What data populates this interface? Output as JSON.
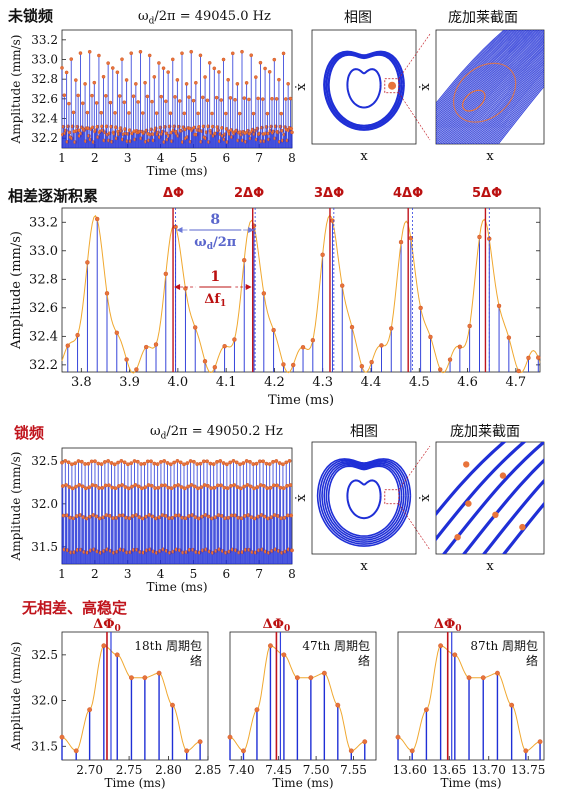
{
  "panels": {
    "p1": {
      "title": "未锁频",
      "freq_label": "ω",
      "freq_sub": "d",
      "freq_rest": "/2π = 49045.0 Hz"
    },
    "p2": {
      "title": "相差逐渐积累"
    },
    "p3": {
      "title": "锁频",
      "freq_label": "ω",
      "freq_sub": "d",
      "freq_rest": "/2π = 49050.2 Hz"
    },
    "p4": {
      "title": "无相差、高稳定"
    }
  },
  "insets": {
    "phase_title": "相图",
    "poincare_title": "庞加莱截面",
    "x_label": "x",
    "y_label": "ẋ"
  },
  "annotations": {
    "delta_labels": [
      "ΔΦ",
      "2ΔΦ",
      "3ΔΦ",
      "4ΔΦ",
      "5ΔΦ"
    ],
    "period_num": "8",
    "period_den": "ω",
    "period_den_sub": "d",
    "period_den_rest": "/2π",
    "beat_num": "1",
    "beat_den": "Δf",
    "beat_den_sub": "1",
    "delta0": "ΔΦ",
    "delta0_sub": "0",
    "envelope_labels": [
      "18th 周期包络",
      "47th 周期包络",
      "87th 周期包络"
    ]
  },
  "colors": {
    "stem": "#1f2fd6",
    "marker": "#e8743b",
    "envelope": "#f0a830",
    "phase_line": "#c0141c",
    "period_line": "#3040e0"
  },
  "chart_data": [
    {
      "type": "scatter",
      "id": "unlocked_time",
      "xlabel": "Time (ms)",
      "ylabel": "Amplitude (mm/s)",
      "xlim": [
        1,
        8
      ],
      "ylim": [
        32.1,
        33.3
      ],
      "xticks": [
        1,
        2,
        3,
        4,
        5,
        6,
        7,
        8
      ],
      "yticks": [
        32.2,
        32.4,
        32.6,
        32.8,
        33.0,
        33.2
      ],
      "description_values": {
        "peak_range": [
          32.7,
          33.1
        ],
        "trough_range": [
          32.25,
          32.35
        ],
        "mid_level": 32.6
      }
    },
    {
      "type": "line",
      "id": "accumulating_phase",
      "xlabel": "Time (ms)",
      "ylabel": "Amplitude (mm/s)",
      "xlim": [
        3.76,
        4.75
      ],
      "ylim": [
        32.15,
        33.3
      ],
      "xticks": [
        3.8,
        3.9,
        4.0,
        4.1,
        4.2,
        4.3,
        4.4,
        4.5,
        4.6,
        4.7
      ],
      "yticks": [
        32.2,
        32.4,
        32.6,
        32.8,
        33.0,
        33.2
      ],
      "peaks": [
        {
          "t": 3.83,
          "v": 33.17
        },
        {
          "t": 3.995,
          "v": 33.12
        },
        {
          "t": 4.155,
          "v": 33.15
        },
        {
          "t": 4.318,
          "v": 33.2
        },
        {
          "t": 4.475,
          "v": 33.14
        },
        {
          "t": 4.637,
          "v": 33.16
        }
      ],
      "phase_lines": [
        3.99,
        4.155,
        4.315,
        4.477,
        4.637
      ],
      "period_lines": [
        3.995,
        4.16,
        4.323,
        4.486,
        4.645
      ]
    },
    {
      "type": "scatter",
      "id": "locked_time",
      "xlabel": "Time (ms)",
      "ylabel": "Amplitude (mm/s)",
      "xlim": [
        1,
        8
      ],
      "ylim": [
        31.3,
        32.65
      ],
      "xticks": [
        1,
        2,
        3,
        4,
        5,
        6,
        7,
        8
      ],
      "yticks": [
        31.5,
        32.0,
        32.5
      ],
      "description_values": {
        "levels": [
          32.48,
          32.2,
          31.85,
          31.45
        ]
      }
    },
    {
      "type": "line",
      "id": "envelope_18",
      "xlabel": "Time (ms)",
      "ylabel": "Amplitude (mm/s)",
      "xlim": [
        2.665,
        2.85
      ],
      "ylim": [
        31.35,
        32.75
      ],
      "xticks": [
        2.7,
        2.75,
        2.8,
        2.85
      ],
      "yticks": [
        31.5,
        32.0,
        32.5
      ],
      "phase_line": 2.722,
      "x": [
        2.665,
        2.683,
        2.7,
        2.718,
        2.735,
        2.753,
        2.77,
        2.788,
        2.805,
        2.823,
        2.84
      ],
      "values": [
        31.6,
        31.45,
        31.9,
        32.6,
        32.5,
        32.25,
        32.25,
        32.3,
        31.95,
        31.45,
        31.55
      ]
    },
    {
      "type": "line",
      "id": "envelope_47",
      "xlabel": "Time (ms)",
      "ylabel": "",
      "xlim": [
        7.385,
        7.58
      ],
      "ylim": [
        31.35,
        32.75
      ],
      "xticks": [
        7.4,
        7.45,
        7.5,
        7.55
      ],
      "phase_line": 7.447,
      "x": [
        7.385,
        7.403,
        7.421,
        7.439,
        7.457,
        7.475,
        7.493,
        7.511,
        7.529,
        7.547,
        7.565
      ],
      "values": [
        31.6,
        31.45,
        31.9,
        32.6,
        32.5,
        32.25,
        32.25,
        32.3,
        31.95,
        31.45,
        31.55
      ]
    },
    {
      "type": "line",
      "id": "envelope_87",
      "xlabel": "Time (ms)",
      "ylabel": "",
      "xlim": [
        13.585,
        13.77
      ],
      "ylim": [
        31.35,
        32.75
      ],
      "xticks": [
        13.6,
        13.65,
        13.7,
        13.75
      ],
      "phase_line": 13.648,
      "x": [
        13.585,
        13.603,
        13.621,
        13.639,
        13.657,
        13.675,
        13.693,
        13.711,
        13.729,
        13.747,
        13.765
      ],
      "values": [
        31.6,
        31.45,
        31.9,
        32.6,
        32.5,
        32.25,
        32.25,
        32.3,
        31.95,
        31.45,
        31.55
      ]
    }
  ]
}
